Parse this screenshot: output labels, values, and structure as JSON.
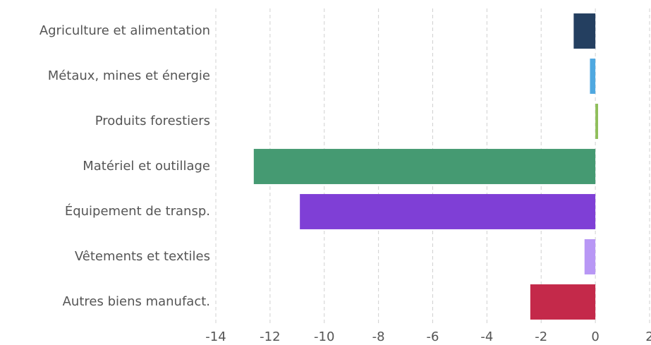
{
  "chart_data": {
    "type": "hbar",
    "categories": [
      "Agriculture et alimentation",
      "Métaux, mines et énergie",
      "Produits forestiers",
      "Matériel et outillage",
      "Équipement de transp.",
      "Vêtements et textiles",
      "Autres biens manufact."
    ],
    "values": [
      -0.8,
      -0.2,
      0.1,
      -12.6,
      -10.9,
      -0.4,
      -2.4
    ],
    "colors": [
      "#243f60",
      "#4fa8e0",
      "#8fbf5a",
      "#459a72",
      "#7f3fd6",
      "#b897f5",
      "#c4294a"
    ],
    "xlim": [
      -14,
      2
    ],
    "xticks": [
      -14,
      -12,
      -10,
      -8,
      -6,
      -4,
      -2,
      0,
      2
    ],
    "grid": true
  }
}
